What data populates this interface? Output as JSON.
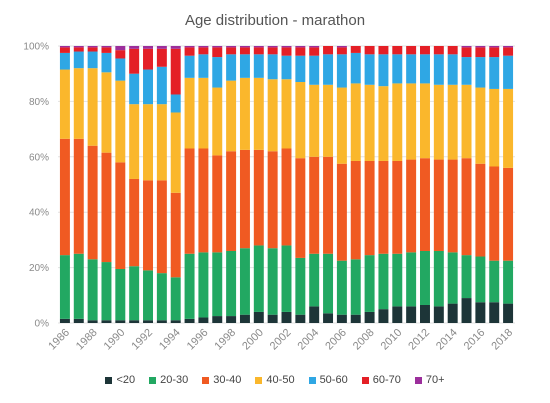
{
  "chart_data": {
    "type": "bar",
    "stacked": true,
    "title": "Age distribution - marathon",
    "categories": [
      "1986",
      "1987",
      "1988",
      "1989",
      "1990",
      "1991",
      "1992",
      "1993",
      "1994",
      "1995",
      "1996",
      "1997",
      "1998",
      "1999",
      "2000",
      "2001",
      "2002",
      "2003",
      "2004",
      "2005",
      "2006",
      "2007",
      "2008",
      "2009",
      "2010",
      "2011",
      "2012",
      "2013",
      "2014",
      "2015",
      "2016",
      "2017",
      "2018"
    ],
    "x_tick_labels": [
      "1986",
      "1988",
      "1990",
      "1992",
      "1994",
      "1996",
      "1998",
      "2000",
      "2002",
      "2004",
      "2006",
      "2008",
      "2010",
      "2012",
      "2014",
      "2016",
      "2018"
    ],
    "y_tick_labels": [
      "0%",
      "20%",
      "40%",
      "60%",
      "80%",
      "100%"
    ],
    "ylim": [
      0,
      100
    ],
    "grid": true,
    "legend_position": "bottom",
    "series": [
      {
        "name": "<20",
        "color": "#1d3538",
        "values": [
          1.5,
          1.5,
          1,
          1,
          1,
          1,
          1,
          1,
          1,
          1.5,
          2,
          2.5,
          2.5,
          3,
          4,
          3,
          4,
          3,
          6,
          3.5,
          3,
          3,
          4,
          5,
          6,
          6,
          6.5,
          6,
          7,
          9,
          7.5,
          7.5,
          7
        ]
      },
      {
        "name": "20-30",
        "color": "#22a862",
        "values": [
          23,
          23.5,
          22,
          21,
          18.5,
          19.5,
          18,
          17,
          15.5,
          23.5,
          23.5,
          23,
          23.5,
          24,
          24,
          24,
          24,
          20.5,
          19,
          21.5,
          19.5,
          20,
          20.5,
          20,
          19,
          19.5,
          19.5,
          20,
          18.5,
          15.5,
          16.5,
          15,
          15.5
        ]
      },
      {
        "name": "30-40",
        "color": "#f05a22",
        "values": [
          42,
          41.5,
          41,
          39.5,
          38.5,
          31.5,
          32.5,
          33.5,
          30.5,
          38,
          37.5,
          35,
          36,
          35.5,
          34.5,
          35,
          35,
          36,
          35,
          35,
          35,
          35.5,
          34,
          33.5,
          33.5,
          33.5,
          33.5,
          33,
          33.5,
          35,
          33.5,
          34,
          33.5
        ]
      },
      {
        "name": "40-50",
        "color": "#fab72c",
        "values": [
          25,
          25.5,
          28,
          29,
          29.5,
          27,
          27.5,
          27.5,
          29,
          25.5,
          25.5,
          24.5,
          25.5,
          26,
          26,
          26,
          25,
          27.5,
          26,
          26,
          27.5,
          28,
          27.5,
          27,
          28,
          27.5,
          27,
          27,
          27,
          26.5,
          27.5,
          28,
          28.5
        ]
      },
      {
        "name": "50-60",
        "color": "#2fa7e4",
        "values": [
          6,
          6,
          6,
          7,
          8,
          11,
          12.5,
          13.5,
          6.5,
          8,
          8.5,
          11,
          9.5,
          8.5,
          8.5,
          9,
          8.5,
          9.5,
          10.5,
          11,
          12,
          11,
          11,
          11.5,
          10.5,
          10.5,
          10.5,
          11,
          11,
          10,
          11,
          11.5,
          12
        ]
      },
      {
        "name": "60-70",
        "color": "#e41f26",
        "values": [
          2,
          1.5,
          1.5,
          2,
          3,
          9,
          7.5,
          6.5,
          16.5,
          3,
          2.5,
          3.5,
          2.5,
          2.5,
          2.5,
          2.5,
          3,
          3,
          3,
          3,
          2.5,
          2.5,
          3,
          3,
          3,
          3,
          3,
          3,
          3,
          3.5,
          3.5,
          3.5,
          3
        ]
      },
      {
        "name": "70+",
        "color": "#9c2e9c",
        "values": [
          0.5,
          0.5,
          0.5,
          0.5,
          1.5,
          1,
          1,
          1,
          1,
          0.5,
          0.5,
          0.5,
          0.5,
          0.5,
          0.5,
          0.5,
          0.5,
          0.5,
          0.5,
          0,
          0.5,
          0,
          0,
          0,
          0,
          0,
          0,
          0,
          0,
          0.5,
          0.5,
          0.5,
          0.5
        ]
      }
    ]
  }
}
